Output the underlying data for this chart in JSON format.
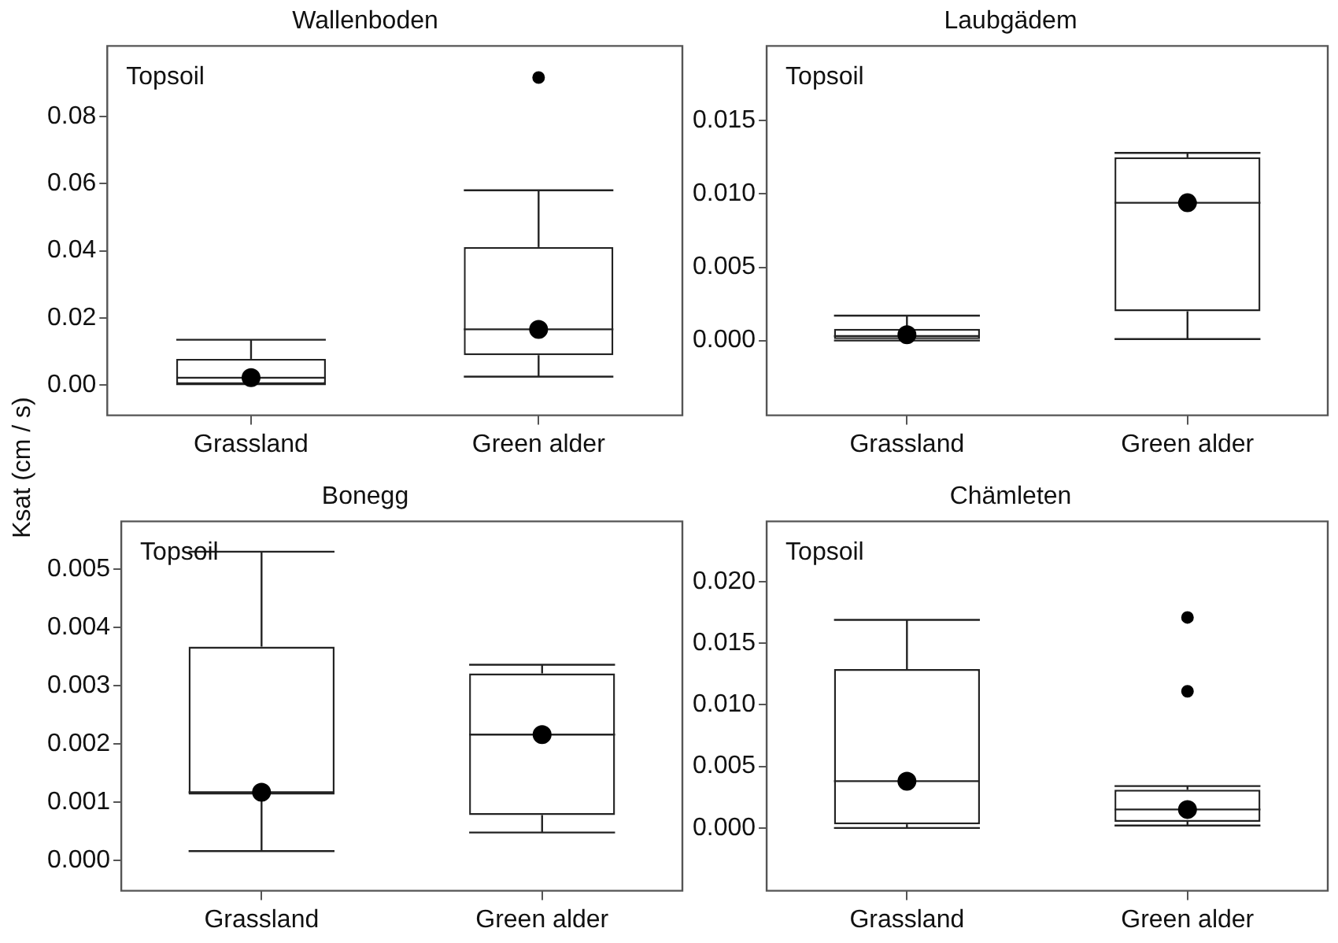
{
  "chart_data": [
    {
      "type": "box",
      "title": "Wallenboden",
      "ylabel": "Ksat (cm / s)",
      "categories": [
        "Grassland",
        "Green alder"
      ],
      "annotations": [
        "Topsoil"
      ],
      "ylim": [
        -0.009,
        0.101
      ],
      "yticks": [
        {
          "value": 0,
          "label": "0.00"
        },
        {
          "value": 0.02,
          "label": "0.02"
        },
        {
          "value": 0.04,
          "label": "0.04"
        },
        {
          "value": 0.06,
          "label": "0.06"
        },
        {
          "value": 0.08,
          "label": "0.08"
        }
      ],
      "boxes": [
        {
          "low": 0.0003,
          "q1": 0.0003,
          "median": 0.0022,
          "q3": 0.0078,
          "high": 0.0135,
          "mean": 0.0022
        },
        {
          "low": 0.0025,
          "q1": 0.0089,
          "median": 0.0166,
          "q3": 0.0411,
          "high": 0.058,
          "mean": 0.0166,
          "outliers": [
            0.0916
          ]
        }
      ]
    },
    {
      "type": "box",
      "title": "Laubgädem",
      "categories": [
        "Grassland",
        "Green alder"
      ],
      "annotations": [
        "Topsoil"
      ],
      "ylim": [
        -0.0051,
        0.0201
      ],
      "yticks": [
        {
          "value": 0,
          "label": "0.000"
        },
        {
          "value": 0.005,
          "label": "0.005"
        },
        {
          "value": 0.01,
          "label": "0.010"
        },
        {
          "value": 0.015,
          "label": "0.015"
        }
      ],
      "boxes": [
        {
          "low": 0.0,
          "q1": 0.0001,
          "median": 0.0003,
          "q3": 0.0008,
          "high": 0.0017,
          "mean": 0.0004
        },
        {
          "low": 0.0001,
          "q1": 0.002,
          "median": 0.0094,
          "q3": 0.0125,
          "high": 0.0128,
          "mean": 0.0094
        }
      ]
    },
    {
      "type": "box",
      "title": "Bonegg",
      "categories": [
        "Grassland",
        "Green alder"
      ],
      "annotations": [
        "Topsoil"
      ],
      "ylim": [
        -0.00052,
        0.00582
      ],
      "yticks": [
        {
          "value": 0,
          "label": "0.000"
        },
        {
          "value": 0.001,
          "label": "0.001"
        },
        {
          "value": 0.002,
          "label": "0.002"
        },
        {
          "value": 0.003,
          "label": "0.003"
        },
        {
          "value": 0.004,
          "label": "0.004"
        },
        {
          "value": 0.005,
          "label": "0.005"
        }
      ],
      "boxes": [
        {
          "low": 0.00016,
          "q1": 0.00113,
          "median": 0.00117,
          "q3": 0.00367,
          "high": 0.0053,
          "mean": 0.00117
        },
        {
          "low": 0.00048,
          "q1": 0.00078,
          "median": 0.00216,
          "q3": 0.00321,
          "high": 0.00336,
          "mean": 0.00216
        }
      ]
    },
    {
      "type": "box",
      "title": "Chämleten",
      "categories": [
        "Grassland",
        "Green alder"
      ],
      "annotations": [
        "Topsoil"
      ],
      "ylim": [
        -0.0051,
        0.0249
      ],
      "yticks": [
        {
          "value": 0,
          "label": "0.000"
        },
        {
          "value": 0.005,
          "label": "0.005"
        },
        {
          "value": 0.01,
          "label": "0.010"
        },
        {
          "value": 0.015,
          "label": "0.015"
        },
        {
          "value": 0.02,
          "label": "0.020"
        }
      ],
      "boxes": [
        {
          "low": 0.0,
          "q1": 0.0003,
          "median": 0.0038,
          "q3": 0.0129,
          "high": 0.0169,
          "mean": 0.0038
        },
        {
          "low": 0.0002,
          "q1": 0.0005,
          "median": 0.0015,
          "q3": 0.0031,
          "high": 0.0034,
          "mean": 0.0015,
          "outliers": [
            0.0171,
            0.0111
          ]
        }
      ]
    }
  ]
}
